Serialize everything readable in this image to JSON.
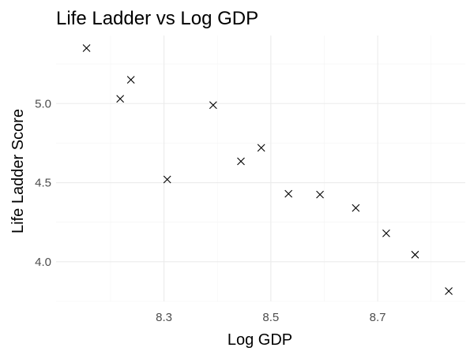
{
  "chart_data": {
    "type": "scatter",
    "title": "Life Ladder vs Log GDP",
    "xlabel": "Log GDP",
    "ylabel": "Life Ladder Score",
    "marker": "x",
    "grid": true,
    "xlim": [
      8.098,
      8.864
    ],
    "ylim": [
      3.75,
      5.43
    ],
    "xticks": [
      8.3,
      8.5,
      8.7
    ],
    "xtick_labels": [
      "8.3",
      "8.5",
      "8.7"
    ],
    "yticks": [
      4.0,
      4.5,
      5.0
    ],
    "ytick_labels": [
      "4.0",
      "4.5",
      "5.0"
    ],
    "points": [
      {
        "x": 8.155,
        "y": 5.35
      },
      {
        "x": 8.218,
        "y": 5.03
      },
      {
        "x": 8.238,
        "y": 5.15
      },
      {
        "x": 8.306,
        "y": 4.52
      },
      {
        "x": 8.392,
        "y": 4.99
      },
      {
        "x": 8.444,
        "y": 4.635
      },
      {
        "x": 8.482,
        "y": 4.72
      },
      {
        "x": 8.533,
        "y": 4.43
      },
      {
        "x": 8.592,
        "y": 4.425
      },
      {
        "x": 8.659,
        "y": 4.34
      },
      {
        "x": 8.716,
        "y": 4.18
      },
      {
        "x": 8.77,
        "y": 4.045
      },
      {
        "x": 8.833,
        "y": 3.815
      }
    ],
    "colors": {
      "marker": "#000000",
      "grid": "#ebebeb",
      "tick_text": "#4d4d4d",
      "background": "#ffffff"
    }
  }
}
